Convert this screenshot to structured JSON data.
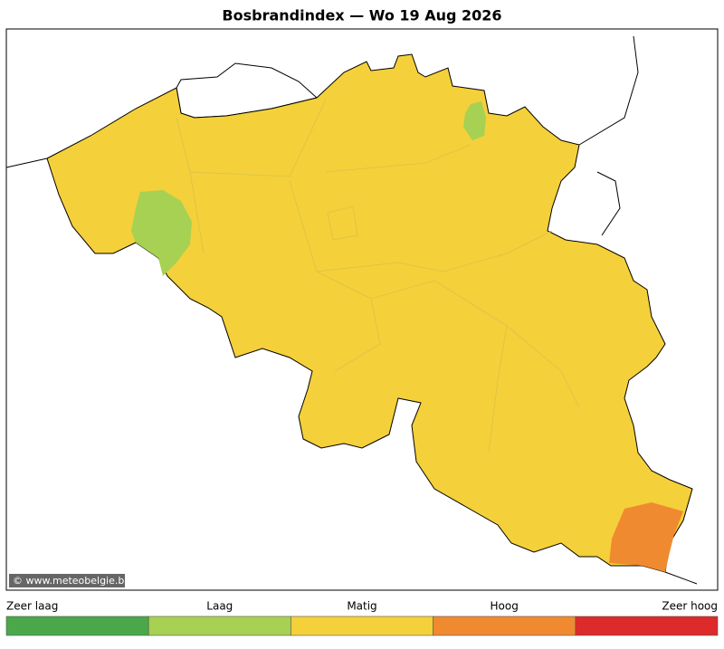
{
  "map": {
    "title": "Bosbrandindex  —  Wo 19 Aug 2026",
    "credit": "© www.meteobelgie.be",
    "legend": [
      {
        "label": "Zeer laag",
        "color": "#4aa84a"
      },
      {
        "label": "Laag",
        "color": "#a6d152"
      },
      {
        "label": "Matig",
        "color": "#f4d03a"
      },
      {
        "label": "Hoog",
        "color": "#f08a30"
      },
      {
        "label": "Zeer hoog",
        "color": "#dd2a2a"
      }
    ]
  }
}
